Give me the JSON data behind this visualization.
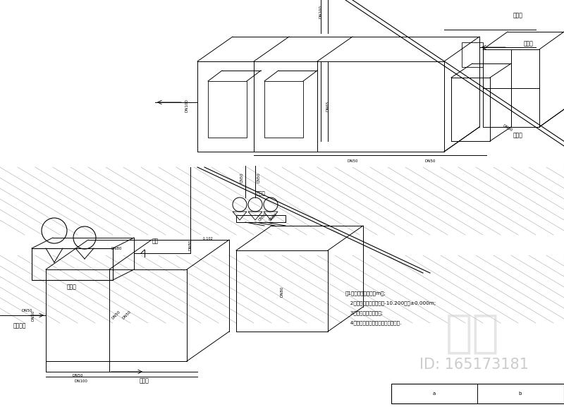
{
  "background_color": "#ffffff",
  "line_color": "#000000",
  "notes_text": [
    "注1、图中标高单位以m计;",
    "   2、以设备间地面标高为-10.200等于±0.000m;",
    "   3、标高处注为管底标;",
    "   4、进水管为从水箱底部接进入水算."
  ],
  "watermark": "知本",
  "id_text": "ID: 165173181",
  "fig_width": 8.0,
  "fig_height": 5.77
}
